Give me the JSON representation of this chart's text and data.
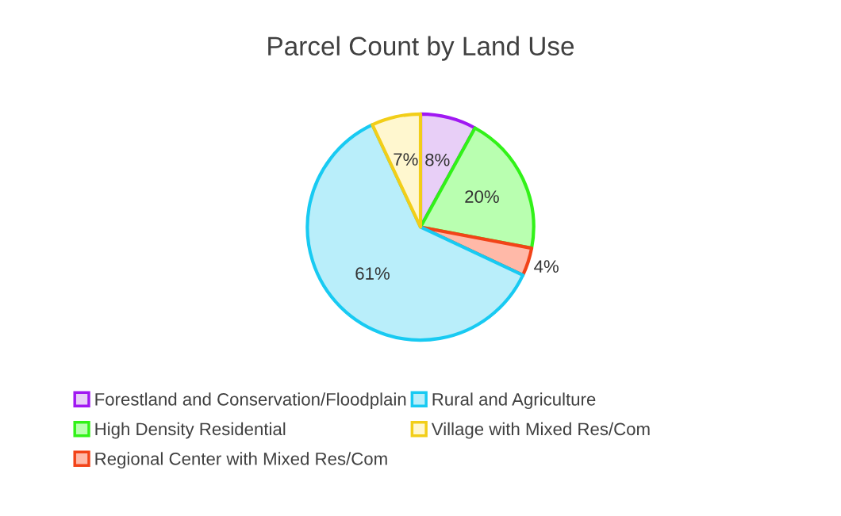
{
  "chart_data": {
    "type": "pie",
    "title": "Parcel Count by Land Use",
    "categories": [
      "Forestland and Conservation/Floodplain",
      "High Density Residential",
      "Regional Center with Mixed Res/Com",
      "Rural and Agriculture",
      "Village with Mixed Res/Com"
    ],
    "values": [
      8,
      20,
      4,
      61,
      7
    ],
    "colors": [
      "#e8cff7",
      "#b9ffb0",
      "#ffb9a8",
      "#b9eefa",
      "#fff7cf"
    ],
    "value_labels": [
      "8%",
      "20%",
      "4%",
      "61%",
      "7%"
    ],
    "legend": "bottom"
  }
}
